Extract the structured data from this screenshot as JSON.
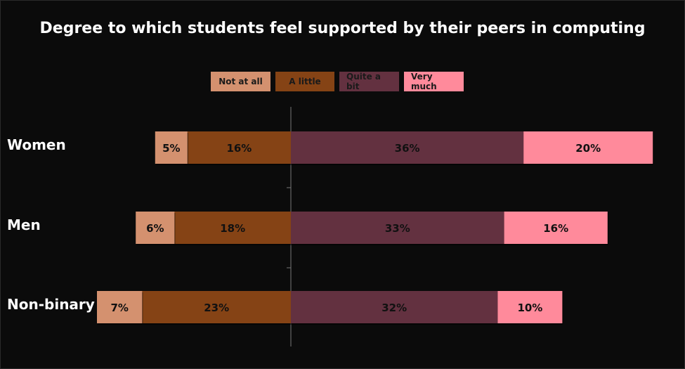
{
  "chart_data": {
    "type": "bar",
    "orientation": "horizontal",
    "stacked": "diverging",
    "title": "Degree to which students feel supported by their peers in computing",
    "categories": [
      "Women",
      "Men",
      "Non-binary"
    ],
    "series": [
      {
        "name": "Not at all",
        "values": [
          5,
          6,
          7
        ],
        "labels": [
          "5%",
          "6%",
          "7%"
        ],
        "color": "#d4916f",
        "side": "negative"
      },
      {
        "name": "A little",
        "values": [
          16,
          18,
          23
        ],
        "labels": [
          "16%",
          "18%",
          "23%"
        ],
        "color": "#854315",
        "side": "negative"
      },
      {
        "name": "Quite a bit",
        "values": [
          36,
          33,
          32
        ],
        "labels": [
          "36%",
          "33%",
          "32%"
        ],
        "color": "#633140",
        "side": "positive"
      },
      {
        "name": "Very much",
        "values": [
          20,
          16,
          10
        ],
        "labels": [
          "20%",
          "16%",
          "10%"
        ],
        "color": "#ff8a9b",
        "side": "positive"
      }
    ],
    "legend_position": "top-center",
    "grid": false,
    "xlabel": "",
    "ylabel": ""
  },
  "colors": {
    "background": "#0b0b0b",
    "text": "#ffffff",
    "axis": "#777777"
  }
}
